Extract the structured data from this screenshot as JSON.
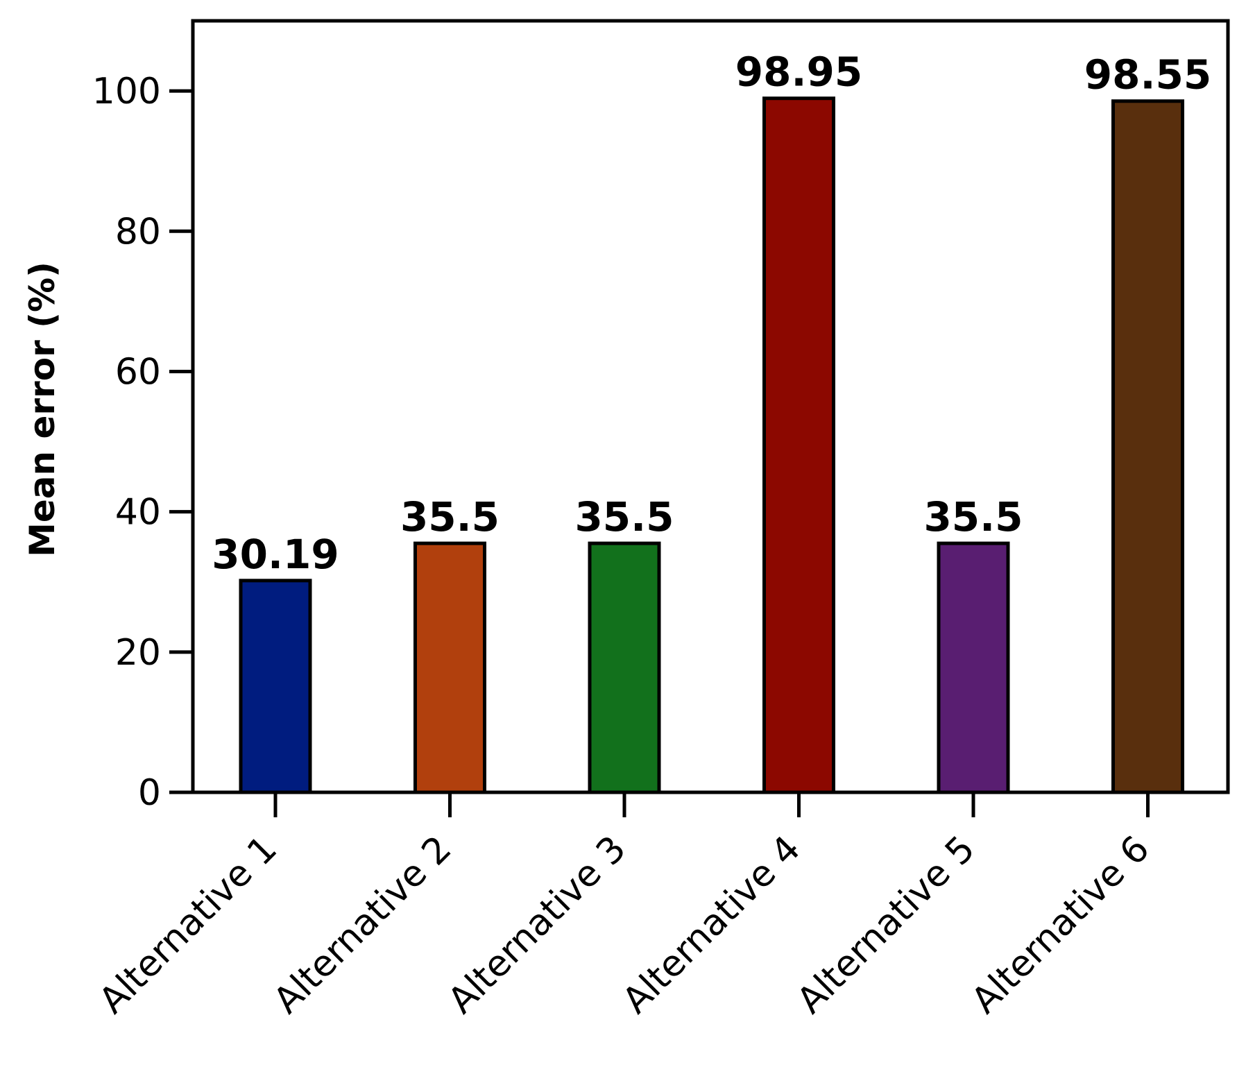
{
  "chart_data": {
    "type": "bar",
    "title": "",
    "xlabel": "",
    "ylabel": "Mean error (%)",
    "ylim": [
      0,
      110
    ],
    "yticks": [
      0,
      20,
      40,
      60,
      80,
      100
    ],
    "ytick_labels": [
      "0",
      "20",
      "40",
      "60",
      "80",
      "100"
    ],
    "categories": [
      "Alternative 1",
      "Alternative 2",
      "Alternative 3",
      "Alternative 4",
      "Alternative 5",
      "Alternative 6"
    ],
    "values": [
      30.19,
      35.5,
      35.5,
      98.95,
      35.5,
      98.55
    ],
    "value_labels": [
      "30.19",
      "35.5",
      "35.5",
      "98.95",
      "35.5",
      "98.55"
    ],
    "colors": [
      "#001c7f",
      "#b1400d",
      "#12711c",
      "#8c0800",
      "#591e71",
      "#592f0d"
    ],
    "grid": false,
    "legend": "none"
  }
}
